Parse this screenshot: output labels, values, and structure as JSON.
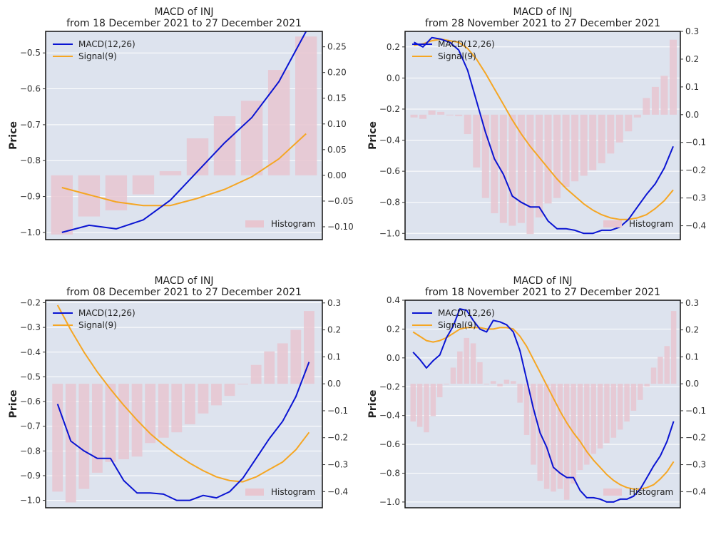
{
  "colors": {
    "macd": "#0a14d2",
    "signal": "#f5a623",
    "histogram": "#e8c6d0",
    "plot_bg": "#dde3ee",
    "grid": "#ffffff",
    "frame": "#111111"
  },
  "chart_data": [
    {
      "type": "line",
      "title": "MACD of INJ",
      "subtitle": "from 18 December 2021 to 27 December 2021",
      "ylabel": "Price",
      "ylim": [
        -1.02,
        -0.44
      ],
      "yticks": [
        -1.0,
        -0.9,
        -0.8,
        -0.7,
        -0.6,
        -0.5
      ],
      "ytick_labels": [
        "−1.0",
        "−0.9",
        "−0.8",
        "−0.7",
        "−0.6",
        "−0.5"
      ],
      "y2lim": [
        -0.125,
        0.28
      ],
      "y2ticks": [
        -0.1,
        -0.05,
        0.0,
        0.05,
        0.1,
        0.15,
        0.2,
        0.25
      ],
      "y2tick_labels": [
        "−0.10",
        "−0.05",
        "0.00",
        "0.05",
        "0.10",
        "0.15",
        "0.20",
        "0.25"
      ],
      "xlim": [
        -0.6,
        9.6
      ],
      "legend": [
        "MACD(12,26)",
        "Signal(9)"
      ],
      "legend_histogram": "Histogram",
      "series": [
        {
          "name": "MACD(12,26)",
          "x": [
            0,
            1,
            2,
            3,
            4,
            5,
            6,
            7,
            8,
            9
          ],
          "values": [
            -1.0,
            -0.98,
            -0.99,
            -0.965,
            -0.91,
            -0.83,
            -0.75,
            -0.68,
            -0.58,
            -0.44
          ]
        },
        {
          "name": "Signal(9)",
          "x": [
            0,
            1,
            2,
            3,
            4,
            5,
            6,
            7,
            8,
            9
          ],
          "values": [
            -0.875,
            -0.895,
            -0.915,
            -0.925,
            -0.925,
            -0.905,
            -0.88,
            -0.845,
            -0.795,
            -0.725
          ]
        },
        {
          "name": "Histogram",
          "x": [
            0,
            1,
            2,
            3,
            4,
            5,
            6,
            7,
            8,
            9
          ],
          "values": [
            -0.115,
            -0.08,
            -0.068,
            -0.037,
            0.008,
            0.072,
            0.115,
            0.145,
            0.205,
            0.27
          ]
        }
      ]
    },
    {
      "type": "line",
      "title": "MACD of INJ",
      "subtitle": "from 28 November 2021 to 27 December 2021",
      "ylabel": "Price",
      "ylim": [
        -1.04,
        0.3
      ],
      "yticks": [
        -1.0,
        -0.8,
        -0.6,
        -0.4,
        -0.2,
        0.0,
        0.2
      ],
      "ytick_labels": [
        "−1.0",
        "−0.8",
        "−0.6",
        "−0.4",
        "−0.2",
        "0.0",
        "0.2"
      ],
      "y2lim": [
        -0.45,
        0.3
      ],
      "y2ticks": [
        -0.4,
        -0.3,
        -0.2,
        -0.1,
        0.0,
        0.1,
        0.2,
        0.3
      ],
      "y2tick_labels": [
        "−0.4",
        "−0.3",
        "−0.2",
        "−0.1",
        "0.0",
        "0.1",
        "0.2",
        "0.3"
      ],
      "xlim": [
        -1.0,
        29.8
      ],
      "legend": [
        "MACD(12,26)",
        "Signal(9)"
      ],
      "legend_histogram": "Histogram",
      "series": [
        {
          "name": "MACD(12,26)",
          "x": [
            0,
            1,
            2,
            3,
            4,
            5,
            6,
            7,
            8,
            9,
            10,
            11,
            12,
            13,
            14,
            15,
            16,
            17,
            18,
            19,
            20,
            21,
            22,
            23,
            24,
            25,
            26,
            27,
            28,
            29
          ],
          "values": [
            0.23,
            0.2,
            0.26,
            0.25,
            0.23,
            0.18,
            0.05,
            -0.15,
            -0.35,
            -0.52,
            -0.62,
            -0.76,
            -0.8,
            -0.83,
            -0.83,
            -0.92,
            -0.97,
            -0.97,
            -0.98,
            -1.0,
            -1.0,
            -0.98,
            -0.98,
            -0.96,
            -0.91,
            -0.83,
            -0.75,
            -0.68,
            -0.58,
            -0.44
          ]
        },
        {
          "name": "Signal(9)",
          "x": [
            0,
            1,
            2,
            3,
            4,
            5,
            6,
            7,
            8,
            9,
            10,
            11,
            12,
            13,
            14,
            15,
            16,
            17,
            18,
            19,
            20,
            21,
            22,
            23,
            24,
            25,
            26,
            27,
            28,
            29
          ],
          "values": [
            0.21,
            0.22,
            0.24,
            0.25,
            0.24,
            0.23,
            0.19,
            0.12,
            0.03,
            -0.07,
            -0.17,
            -0.27,
            -0.36,
            -0.44,
            -0.51,
            -0.58,
            -0.65,
            -0.71,
            -0.76,
            -0.81,
            -0.85,
            -0.88,
            -0.9,
            -0.91,
            -0.91,
            -0.9,
            -0.88,
            -0.84,
            -0.79,
            -0.72
          ]
        },
        {
          "name": "Histogram",
          "x": [
            0,
            1,
            2,
            3,
            4,
            5,
            6,
            7,
            8,
            9,
            10,
            11,
            12,
            13,
            14,
            15,
            16,
            17,
            18,
            19,
            20,
            21,
            22,
            23,
            24,
            25,
            26,
            27,
            28,
            29
          ],
          "values": [
            -0.01,
            -0.015,
            0.015,
            0.01,
            0.0,
            -0.005,
            -0.07,
            -0.19,
            -0.3,
            -0.355,
            -0.39,
            -0.4,
            -0.39,
            -0.43,
            -0.37,
            -0.32,
            -0.3,
            -0.26,
            -0.24,
            -0.22,
            -0.2,
            -0.175,
            -0.14,
            -0.1,
            -0.06,
            -0.01,
            0.06,
            0.1,
            0.14,
            0.27
          ]
        }
      ]
    },
    {
      "type": "line",
      "title": "MACD of INJ",
      "subtitle": "from 08 December 2021 to 27 December 2021",
      "ylabel": "Price",
      "ylim": [
        -1.03,
        -0.19
      ],
      "yticks": [
        -1.0,
        -0.9,
        -0.8,
        -0.7,
        -0.6,
        -0.5,
        -0.4,
        -0.3,
        -0.2
      ],
      "ytick_labels": [
        "−1.0",
        "−0.9",
        "−0.8",
        "−0.7",
        "−0.6",
        "−0.5",
        "−0.4",
        "−0.3",
        "−0.2"
      ],
      "y2lim": [
        -0.46,
        0.31
      ],
      "y2ticks": [
        -0.4,
        -0.3,
        -0.2,
        -0.1,
        0.0,
        0.1,
        0.2,
        0.3
      ],
      "y2tick_labels": [
        "−0.4",
        "−0.3",
        "−0.2",
        "−0.1",
        "0.0",
        "0.1",
        "0.2",
        "0.3"
      ],
      "xlim": [
        -0.9,
        20.0
      ],
      "legend": [
        "MACD(12,26)",
        "Signal(9)"
      ],
      "legend_histogram": "Histogram",
      "series": [
        {
          "name": "MACD(12,26)",
          "x": [
            0,
            1,
            2,
            3,
            4,
            5,
            6,
            7,
            8,
            9,
            10,
            11,
            12,
            13,
            14,
            15,
            16,
            17,
            18,
            19
          ],
          "values": [
            -0.61,
            -0.76,
            -0.8,
            -0.83,
            -0.83,
            -0.92,
            -0.97,
            -0.97,
            -0.975,
            -1.0,
            -1.0,
            -0.98,
            -0.99,
            -0.965,
            -0.91,
            -0.83,
            -0.75,
            -0.68,
            -0.58,
            -0.44
          ]
        },
        {
          "name": "Signal(9)",
          "x": [
            0,
            1,
            2,
            3,
            4,
            5,
            6,
            7,
            8,
            9,
            10,
            11,
            12,
            13,
            14,
            15,
            16,
            17,
            18,
            19
          ],
          "values": [
            -0.21,
            -0.31,
            -0.4,
            -0.48,
            -0.55,
            -0.615,
            -0.675,
            -0.73,
            -0.775,
            -0.815,
            -0.85,
            -0.88,
            -0.905,
            -0.92,
            -0.925,
            -0.905,
            -0.875,
            -0.845,
            -0.795,
            -0.725
          ]
        },
        {
          "name": "Histogram",
          "x": [
            0,
            1,
            2,
            3,
            4,
            5,
            6,
            7,
            8,
            9,
            10,
            11,
            12,
            13,
            14,
            15,
            16,
            17,
            18,
            19
          ],
          "values": [
            -0.4,
            -0.44,
            -0.39,
            -0.33,
            -0.29,
            -0.28,
            -0.27,
            -0.22,
            -0.2,
            -0.18,
            -0.15,
            -0.11,
            -0.08,
            -0.045,
            0.0,
            0.07,
            0.12,
            0.15,
            0.2,
            0.27
          ]
        }
      ]
    },
    {
      "type": "line",
      "title": "MACD of INJ",
      "subtitle": "from 18 November 2021 to 27 December 2021",
      "ylabel": "Price",
      "ylim": [
        -1.04,
        0.4
      ],
      "yticks": [
        -1.0,
        -0.8,
        -0.6,
        -0.4,
        -0.2,
        0.0,
        0.2,
        0.4
      ],
      "ytick_labels": [
        "−1.0",
        "−0.8",
        "−0.6",
        "−0.4",
        "−0.2",
        "0.0",
        "0.2",
        "0.4"
      ],
      "y2lim": [
        -0.46,
        0.31
      ],
      "y2ticks": [
        -0.4,
        -0.3,
        -0.2,
        -0.1,
        0.0,
        0.1,
        0.2,
        0.3
      ],
      "y2tick_labels": [
        "−0.4",
        "−0.3",
        "−0.2",
        "−0.1",
        "0.0",
        "0.1",
        "0.2",
        "0.3"
      ],
      "xlim": [
        -1.2,
        40.0
      ],
      "legend": [
        "MACD(12,26)",
        "Signal(9)"
      ],
      "legend_histogram": "Histogram",
      "series": [
        {
          "name": "MACD(12,26)",
          "x": [
            0,
            1,
            2,
            3,
            4,
            5,
            6,
            7,
            8,
            9,
            10,
            11,
            12,
            13,
            14,
            15,
            16,
            17,
            18,
            19,
            20,
            21,
            22,
            23,
            24,
            25,
            26,
            27,
            28,
            29,
            30,
            31,
            32,
            33,
            34,
            35,
            36,
            37,
            38,
            39
          ],
          "values": [
            0.04,
            -0.01,
            -0.07,
            -0.02,
            0.02,
            0.14,
            0.22,
            0.34,
            0.33,
            0.26,
            0.2,
            0.18,
            0.26,
            0.25,
            0.23,
            0.18,
            0.05,
            -0.15,
            -0.35,
            -0.52,
            -0.62,
            -0.76,
            -0.8,
            -0.83,
            -0.83,
            -0.92,
            -0.97,
            -0.97,
            -0.98,
            -1.0,
            -1.0,
            -0.98,
            -0.98,
            -0.96,
            -0.91,
            -0.83,
            -0.75,
            -0.68,
            -0.58,
            -0.44
          ]
        },
        {
          "name": "Signal(9)",
          "x": [
            0,
            1,
            2,
            3,
            4,
            5,
            6,
            7,
            8,
            9,
            10,
            11,
            12,
            13,
            14,
            15,
            16,
            17,
            18,
            19,
            20,
            21,
            22,
            23,
            24,
            25,
            26,
            27,
            28,
            29,
            30,
            31,
            32,
            33,
            34,
            35,
            36,
            37,
            38,
            39
          ],
          "values": [
            0.18,
            0.15,
            0.12,
            0.11,
            0.12,
            0.14,
            0.17,
            0.2,
            0.21,
            0.21,
            0.21,
            0.2,
            0.2,
            0.21,
            0.21,
            0.2,
            0.15,
            0.08,
            -0.01,
            -0.1,
            -0.19,
            -0.28,
            -0.37,
            -0.45,
            -0.52,
            -0.58,
            -0.65,
            -0.71,
            -0.76,
            -0.81,
            -0.85,
            -0.88,
            -0.9,
            -0.91,
            -0.91,
            -0.9,
            -0.88,
            -0.84,
            -0.79,
            -0.72
          ]
        },
        {
          "name": "Histogram",
          "x": [
            0,
            1,
            2,
            3,
            4,
            5,
            6,
            7,
            8,
            9,
            10,
            11,
            12,
            13,
            14,
            15,
            16,
            17,
            18,
            19,
            20,
            21,
            22,
            23,
            24,
            25,
            26,
            27,
            28,
            29,
            30,
            31,
            32,
            33,
            34,
            35,
            36,
            37,
            38,
            39
          ],
          "values": [
            -0.14,
            -0.16,
            -0.18,
            -0.12,
            -0.05,
            0.0,
            0.06,
            0.12,
            0.17,
            0.15,
            0.08,
            0.0,
            0.01,
            -0.01,
            0.015,
            0.01,
            -0.07,
            -0.19,
            -0.3,
            -0.36,
            -0.39,
            -0.4,
            -0.39,
            -0.43,
            -0.37,
            -0.32,
            -0.3,
            -0.26,
            -0.24,
            -0.22,
            -0.2,
            -0.17,
            -0.14,
            -0.1,
            -0.06,
            -0.01,
            0.06,
            0.1,
            0.14,
            0.27
          ]
        }
      ]
    }
  ]
}
